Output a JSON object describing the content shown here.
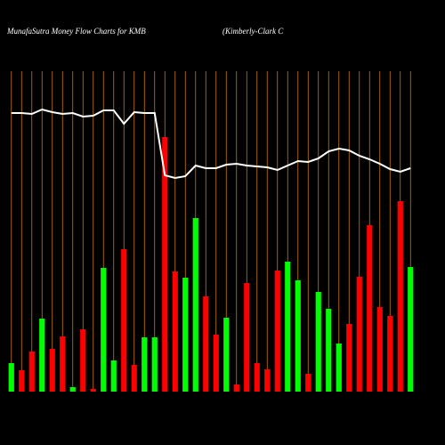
{
  "chart_data": {
    "type": "bar",
    "title": "MunafaSutra  Money Flow  Charts for KMB",
    "subtitle": "(Kimberly-Clark C",
    "values": [
      32,
      24,
      45,
      82,
      48,
      62,
      5,
      70,
      3,
      139,
      35,
      160,
      30,
      61,
      61,
      286,
      135,
      128,
      195,
      107,
      64,
      83,
      8,
      122,
      32,
      25,
      136,
      146,
      125,
      20,
      112,
      93,
      54,
      76,
      129,
      187,
      95,
      85,
      214,
      140
    ],
    "colors": [
      "#00ff00",
      "#ff0000",
      "#ff0000",
      "#00ff00",
      "#ff0000",
      "#ff0000",
      "#00ff00",
      "#ff0000",
      "#ff0000",
      "#00ff00",
      "#00ff00",
      "#ff0000",
      "#ff0000",
      "#00ff00",
      "#00ff00",
      "#ff0000",
      "#ff0000",
      "#00ff00",
      "#00ff00",
      "#ff0000",
      "#ff0000",
      "#00ff00",
      "#ff0000",
      "#ff0000",
      "#ff0000",
      "#ff0000",
      "#ff0000",
      "#00ff00",
      "#00ff00",
      "#ff0000",
      "#00ff00",
      "#00ff00",
      "#00ff00",
      "#ff0000",
      "#ff0000",
      "#ff0000",
      "#ff0000",
      "#ff0000",
      "#ff0000",
      "#00ff00"
    ],
    "line": {
      "color": "#ffffff",
      "values": [
        313,
        313,
        312,
        317,
        314,
        312,
        313,
        309,
        310,
        316,
        316,
        301,
        314,
        313,
        313,
        243,
        240,
        242,
        254,
        251,
        251,
        255,
        256,
        254,
        253,
        252,
        249,
        254,
        259,
        258,
        262,
        270,
        273,
        271,
        265,
        261,
        256,
        250,
        247,
        251
      ]
    },
    "grid_color": "#c87800",
    "ylim": [
      0,
      360
    ]
  }
}
